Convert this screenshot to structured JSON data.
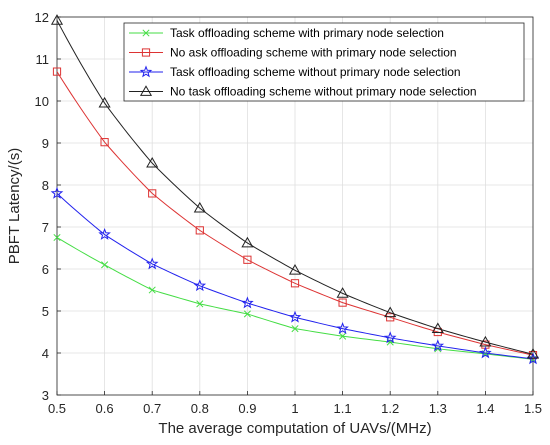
{
  "chart_data": {
    "type": "line",
    "title": "",
    "xlabel": "The average computation of UAVs/(MHz)",
    "ylabel": "PBFT Latency/(s)",
    "xlim": [
      0.5,
      1.5
    ],
    "ylim": [
      3,
      12
    ],
    "x_ticks": [
      "0.5",
      "0.6",
      "0.7",
      "0.8",
      "0.9",
      "1",
      "1.1",
      "1.2",
      "1.3",
      "1.4",
      "1.5"
    ],
    "y_ticks": [
      "3",
      "4",
      "5",
      "6",
      "7",
      "8",
      "9",
      "10",
      "11",
      "12"
    ],
    "grid": true,
    "legend_position": "top-right",
    "x": [
      0.5,
      0.6,
      0.7,
      0.8,
      0.9,
      1.0,
      1.1,
      1.2,
      1.3,
      1.4,
      1.5
    ],
    "series": [
      {
        "name": "Task offloading scheme with primary node selection",
        "color": "#44dd44",
        "marker": "x",
        "values": [
          6.75,
          6.1,
          5.5,
          5.17,
          4.93,
          4.58,
          4.4,
          4.26,
          4.1,
          3.98,
          3.85
        ]
      },
      {
        "name": "No ask offloading scheme with primary node selection",
        "color": "#dd3333",
        "marker": "square",
        "values": [
          10.7,
          9.02,
          7.8,
          6.92,
          6.22,
          5.66,
          5.2,
          4.85,
          4.5,
          4.2,
          3.95
        ]
      },
      {
        "name": "Task offloading scheme without primary node selection",
        "color": "#2222ee",
        "marker": "star",
        "values": [
          7.8,
          6.82,
          6.12,
          5.6,
          5.19,
          4.85,
          4.58,
          4.36,
          4.17,
          4.0,
          3.86
        ]
      },
      {
        "name": "No task offloading scheme without primary node selection",
        "color": "#222222",
        "marker": "triangle",
        "values": [
          11.92,
          9.95,
          8.52,
          7.45,
          6.62,
          5.97,
          5.42,
          4.96,
          4.58,
          4.26,
          3.97
        ]
      }
    ]
  }
}
